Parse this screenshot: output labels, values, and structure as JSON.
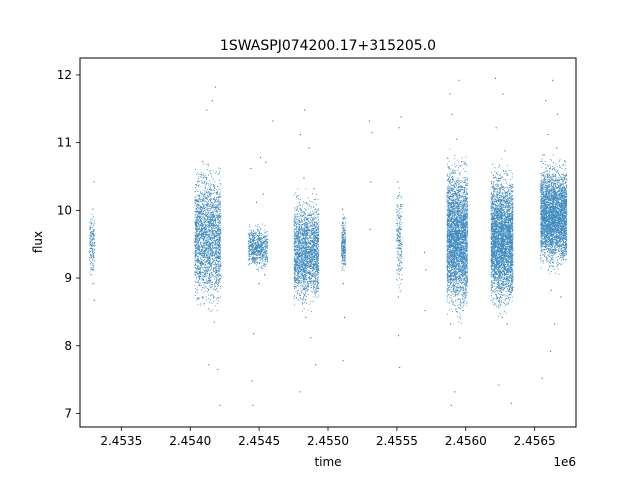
{
  "chart_data": {
    "type": "scatter",
    "title": "1SWASPJ074200.17+315205.0",
    "xlabel": "time",
    "ylabel": "flux",
    "x_offset_label": "1e6",
    "xlim": [
      2453200,
      2456800
    ],
    "ylim": [
      6.8,
      12.25
    ],
    "x_ticks": [
      2453500,
      2454000,
      2454500,
      2455000,
      2455500,
      2456000,
      2456500
    ],
    "x_tick_labels": [
      "2.4535",
      "2.4540",
      "2.4545",
      "2.4550",
      "2.4555",
      "2.4560",
      "2.4565"
    ],
    "y_ticks": [
      7,
      8,
      9,
      10,
      11,
      12
    ],
    "y_tick_labels": [
      "7",
      "8",
      "9",
      "10",
      "11",
      "12"
    ],
    "grid": false,
    "legend": "none",
    "marker_color": "#1f77b4",
    "series": [
      {
        "points": [
          [
            2453270,
            9.38
          ],
          [
            2453273,
            9.52
          ],
          [
            2453275,
            9.21
          ],
          [
            2453278,
            9.67
          ],
          [
            2453280,
            9.05
          ],
          [
            2453282,
            9.44
          ],
          [
            2453285,
            9.81
          ],
          [
            2453288,
            9.12
          ],
          [
            2453290,
            9.58
          ],
          [
            2453292,
            10.02
          ],
          [
            2453295,
            8.92
          ],
          [
            2453298,
            9.33
          ],
          [
            2453300,
            9.71
          ],
          [
            2453302,
            10.42
          ],
          [
            2453304,
            8.67
          ],
          [
            2454040,
            9.62
          ],
          [
            2454055,
            10.15
          ],
          [
            2454065,
            8.91
          ],
          [
            2454080,
            9.84
          ],
          [
            2454090,
            10.72
          ],
          [
            2454100,
            8.62
          ],
          [
            2454110,
            9.41
          ],
          [
            2454120,
            11.48
          ],
          [
            2454130,
            9.12
          ],
          [
            2454140,
            10.31
          ],
          [
            2454150,
            8.74
          ],
          [
            2454160,
            11.62
          ],
          [
            2454168,
            9.96
          ],
          [
            2454175,
            8.35
          ],
          [
            2454182,
            11.82
          ],
          [
            2454190,
            9.26
          ],
          [
            2454200,
            7.65
          ],
          [
            2454210,
            10.55
          ],
          [
            2454215,
            7.12
          ],
          [
            2454075,
            9.05
          ],
          [
            2454135,
            7.72
          ],
          [
            2454172,
            10.08
          ],
          [
            2454105,
            9.71
          ],
          [
            2454145,
            8.96
          ],
          [
            2454118,
            10.48
          ],
          [
            2454430,
            9.21
          ],
          [
            2454440,
            10.62
          ],
          [
            2454448,
            7.48
          ],
          [
            2454455,
            9.55
          ],
          [
            2454460,
            8.18
          ],
          [
            2454470,
            9.38
          ],
          [
            2454480,
            10.12
          ],
          [
            2454490,
            9.72
          ],
          [
            2454500,
            8.92
          ],
          [
            2454510,
            10.78
          ],
          [
            2454520,
            9.48
          ],
          [
            2454530,
            10.24
          ],
          [
            2454540,
            9.05
          ],
          [
            2454548,
            10.71
          ],
          [
            2454555,
            9.31
          ],
          [
            2454455,
            7.12
          ],
          [
            2454600,
            11.32
          ],
          [
            2454760,
            9.62
          ],
          [
            2454775,
            10.21
          ],
          [
            2454788,
            8.68
          ],
          [
            2454800,
            11.12
          ],
          [
            2454812,
            9.04
          ],
          [
            2454825,
            10.48
          ],
          [
            2454838,
            8.42
          ],
          [
            2454850,
            9.87
          ],
          [
            2454862,
            10.92
          ],
          [
            2454875,
            8.12
          ],
          [
            2454888,
            9.55
          ],
          [
            2454900,
            10.32
          ],
          [
            2454910,
            7.72
          ],
          [
            2454920,
            9.18
          ],
          [
            2454795,
            7.32
          ],
          [
            2454830,
            11.48
          ],
          [
            2454868,
            8.95
          ],
          [
            2454895,
            10.05
          ],
          [
            2454805,
            9.33
          ],
          [
            2454845,
            9.71
          ],
          [
            2455100,
            9.52
          ],
          [
            2455105,
            10.02
          ],
          [
            2455110,
            8.92
          ],
          [
            2455115,
            9.71
          ],
          [
            2455120,
            8.42
          ],
          [
            2455122,
            9.28
          ],
          [
            2455108,
            7.78
          ],
          [
            2455112,
            9.88
          ],
          [
            2455300,
            11.32
          ],
          [
            2455310,
            10.42
          ],
          [
            2455320,
            11.15
          ],
          [
            2455305,
            9.72
          ],
          [
            2455500,
            9.12
          ],
          [
            2455505,
            10.42
          ],
          [
            2455510,
            8.72
          ],
          [
            2455515,
            11.22
          ],
          [
            2455520,
            7.68
          ],
          [
            2455525,
            9.92
          ],
          [
            2455530,
            11.38
          ],
          [
            2455512,
            8.15
          ],
          [
            2455518,
            9.55
          ],
          [
            2455700,
            9.38
          ],
          [
            2455710,
            9.12
          ],
          [
            2455705,
            8.52
          ],
          [
            2455870,
            9.42
          ],
          [
            2455880,
            10.62
          ],
          [
            2455890,
            8.32
          ],
          [
            2455900,
            11.42
          ],
          [
            2455910,
            9.82
          ],
          [
            2455920,
            7.32
          ],
          [
            2455930,
            10.25
          ],
          [
            2455940,
            8.82
          ],
          [
            2455950,
            11.92
          ],
          [
            2455960,
            9.12
          ],
          [
            2455970,
            10.72
          ],
          [
            2455980,
            8.52
          ],
          [
            2455990,
            9.62
          ],
          [
            2456000,
            10.18
          ],
          [
            2455885,
            11.72
          ],
          [
            2455895,
            7.12
          ],
          [
            2455915,
            9.05
          ],
          [
            2455935,
            11.05
          ],
          [
            2455955,
            8.12
          ],
          [
            2455975,
            9.42
          ],
          [
            2456190,
            9.28
          ],
          [
            2456200,
            10.48
          ],
          [
            2456210,
            8.62
          ],
          [
            2456220,
            11.22
          ],
          [
            2456230,
            9.58
          ],
          [
            2456240,
            7.42
          ],
          [
            2456250,
            10.12
          ],
          [
            2456260,
            8.92
          ],
          [
            2456270,
            11.72
          ],
          [
            2456280,
            9.18
          ],
          [
            2456290,
            10.58
          ],
          [
            2456300,
            8.32
          ],
          [
            2456310,
            9.82
          ],
          [
            2456320,
            10.25
          ],
          [
            2456330,
            7.15
          ],
          [
            2456215,
            11.95
          ],
          [
            2456245,
            9.05
          ],
          [
            2456265,
            8.42
          ],
          [
            2456285,
            10.88
          ],
          [
            2456305,
            9.52
          ],
          [
            2456550,
            10.12
          ],
          [
            2456560,
            10.82
          ],
          [
            2456570,
            9.42
          ],
          [
            2456580,
            11.62
          ],
          [
            2456590,
            10.32
          ],
          [
            2456600,
            9.12
          ],
          [
            2456610,
            10.62
          ],
          [
            2456620,
            8.82
          ],
          [
            2456630,
            11.92
          ],
          [
            2456640,
            10.02
          ],
          [
            2456650,
            9.72
          ],
          [
            2456660,
            10.92
          ],
          [
            2456670,
            9.32
          ],
          [
            2456680,
            10.52
          ],
          [
            2456690,
            8.72
          ],
          [
            2456700,
            10.22
          ],
          [
            2456710,
            9.62
          ],
          [
            2456720,
            10.72
          ],
          [
            2456555,
            7.52
          ],
          [
            2456595,
            11.12
          ],
          [
            2456615,
            7.92
          ],
          [
            2456645,
            8.32
          ],
          [
            2456665,
            11.42
          ],
          [
            2456685,
            9.85
          ],
          [
            2456705,
            10.45
          ]
        ]
      }
    ],
    "bands": [
      {
        "x0": 2453265,
        "x1": 2453305,
        "lo": 8.95,
        "hi": 10.05,
        "n": 150
      },
      {
        "x0": 2454030,
        "x1": 2454220,
        "lo": 8.35,
        "hi": 10.85,
        "n": 2200
      },
      {
        "x0": 2454420,
        "x1": 2454560,
        "lo": 9.05,
        "hi": 9.85,
        "n": 650
      },
      {
        "x0": 2454750,
        "x1": 2454930,
        "lo": 8.45,
        "hi": 10.35,
        "n": 2200
      },
      {
        "x0": 2455095,
        "x1": 2455125,
        "lo": 9.0,
        "hi": 10.0,
        "n": 260
      },
      {
        "x0": 2455495,
        "x1": 2455535,
        "lo": 8.6,
        "hi": 10.6,
        "n": 200
      },
      {
        "x0": 2455860,
        "x1": 2456010,
        "lo": 8.25,
        "hi": 10.95,
        "n": 3400
      },
      {
        "x0": 2456180,
        "x1": 2456340,
        "lo": 8.35,
        "hi": 10.8,
        "n": 3600
      },
      {
        "x0": 2456540,
        "x1": 2456730,
        "lo": 9.0,
        "hi": 10.85,
        "n": 3600
      }
    ]
  }
}
